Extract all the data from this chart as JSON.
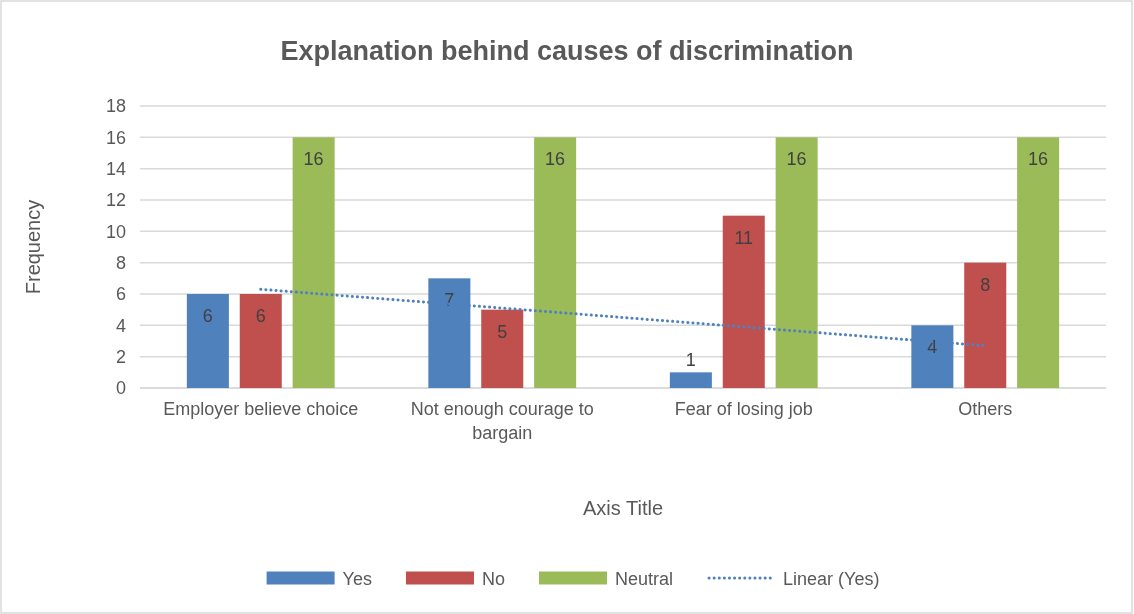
{
  "chart_data": {
    "type": "bar",
    "title": "Explanation behind causes of discrimination",
    "xlabel": "Axis Title",
    "ylabel": "Frequency",
    "categories": [
      "Employer believe choice",
      "Not enough courage to bargain",
      "Fear of losing job",
      "Others"
    ],
    "series": [
      {
        "name": "Yes",
        "color": "#4f81bd",
        "values": [
          6,
          7,
          1,
          4
        ],
        "value_labels": [
          "6",
          "7",
          "1",
          "4"
        ]
      },
      {
        "name": "No",
        "color": "#c0504d",
        "values": [
          6,
          5,
          11,
          8
        ],
        "value_labels": [
          "6",
          "5",
          "11",
          "8"
        ]
      },
      {
        "name": "Neutral",
        "color": "#9bbb59",
        "values": [
          16,
          16,
          16,
          16
        ],
        "value_labels": [
          "16",
          "16",
          "16",
          "16"
        ]
      },
      {
        "name": "Linear (Yes)",
        "type": "line",
        "color": "#4f81bd",
        "line_style": "dotted",
        "values": [
          6.3,
          5.1,
          3.9,
          2.7
        ]
      }
    ],
    "ylim": [
      0,
      18
    ],
    "yticks": [
      0,
      2,
      4,
      6,
      8,
      10,
      12,
      14,
      16,
      18
    ],
    "grid": "y",
    "legend": "bottom"
  }
}
